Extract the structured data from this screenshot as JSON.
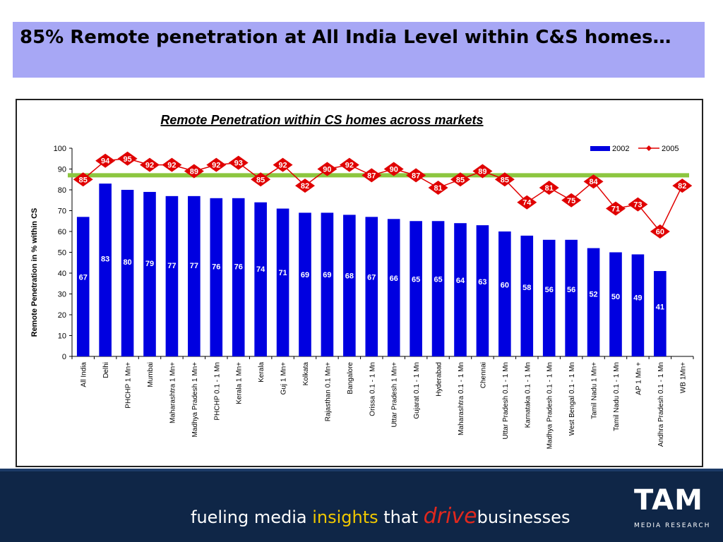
{
  "slide": {
    "title": "85% Remote penetration at All India Level within C&S homes…"
  },
  "footer": {
    "tagline_1": "fueling media ",
    "tagline_2": "insights",
    "tagline_3": " that ",
    "tagline_4": "drive",
    "tagline_5": "businesses",
    "logo_text": "TAM",
    "logo_sub": "MEDIA RESEARCH"
  },
  "colors": {
    "title_bg": "#a7a7f5",
    "bar": "#0000e0",
    "line": "#e00000",
    "benchmark": "#8cc63f",
    "footer_bg": "#0f2647"
  },
  "chart_data": {
    "type": "bar",
    "title": "Remote  Penetration within CS homes across markets",
    "ylabel": "Remote  Penetration in % within CS",
    "xlabel": "",
    "ylim": [
      0,
      100
    ],
    "yticks": [
      0,
      10,
      20,
      30,
      40,
      50,
      60,
      70,
      80,
      90,
      100
    ],
    "legend_position": "top-right",
    "categories": [
      "All India",
      "Delhi",
      "PHCHP 1 Mn+",
      "Mumbai",
      "Maharashtra 1 Mn+",
      "Madhya Pradesh 1 Mn+",
      "PHCHP 0.1 - 1 Mn",
      "Kerala 1 Mn+",
      "Kerala",
      "Guj 1 Mn+",
      "Kolkata",
      "Rajasthan 0.1 Mn+",
      "Bangalore",
      "Orissa 0.1 - 1 Mn",
      "Uttar Pradesh 1 Mn+",
      "Gujarat 0.1 - 1 Mn",
      "Hyderabad",
      "Maharashtra 0.1 - 1 Mn",
      "Chennai",
      "Uttar Pradesh 0.1 - 1 Mn",
      "Karnataka 0.1 - 1 Mn",
      "Madhya Pradesh 0.1 - 1 Mn",
      "West Bengal 0.1 - 1 Mn",
      "Tamil Nadu 1 Mn+",
      "Tamil Nadu 0.1 - 1 Mn",
      "AP 1 Mn +",
      "Andhra Pradesh 0.1 - 1 Mn",
      "WB 1Mn+"
    ],
    "series": [
      {
        "name": "2002",
        "type": "bar",
        "values": [
          67,
          83,
          80,
          79,
          77,
          77,
          76,
          76,
          74,
          71,
          69,
          69,
          68,
          67,
          66,
          65,
          65,
          64,
          63,
          60,
          58,
          56,
          56,
          52,
          50,
          49,
          41,
          null
        ]
      },
      {
        "name": "2005",
        "type": "line",
        "values": [
          85,
          94,
          95,
          92,
          92,
          89,
          92,
          93,
          85,
          92,
          82,
          90,
          92,
          87,
          90,
          87,
          81,
          85,
          89,
          85,
          74,
          81,
          75,
          84,
          71,
          73,
          60,
          82
        ]
      }
    ],
    "benchmark_line": 87
  }
}
